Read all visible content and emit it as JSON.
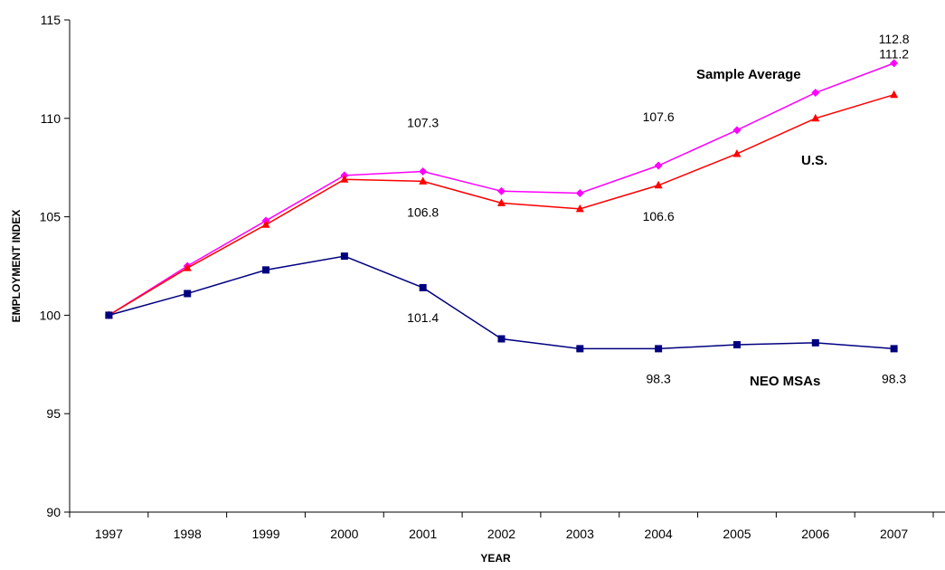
{
  "chart_data": {
    "type": "line",
    "xlabel": "YEAR",
    "ylabel": "EMPLOYMENT INDEX",
    "ylim": [
      90,
      115
    ],
    "yticks": [
      90,
      95,
      100,
      105,
      110,
      115
    ],
    "categories": [
      "1997",
      "1998",
      "1999",
      "2000",
      "2001",
      "2002",
      "2003",
      "2004",
      "2005",
      "2006",
      "2007"
    ],
    "grid": false,
    "legend": "none (series labeled inline)",
    "series": [
      {
        "name": "Sample Average",
        "color": "#FF00FF",
        "marker": "diamond",
        "values": [
          100.0,
          102.5,
          104.8,
          107.1,
          107.3,
          106.3,
          106.2,
          107.6,
          109.4,
          111.3,
          112.8
        ]
      },
      {
        "name": "U.S.",
        "color": "#FF0000",
        "marker": "triangle",
        "values": [
          100.0,
          102.4,
          104.6,
          106.9,
          106.8,
          105.7,
          105.4,
          106.6,
          108.2,
          110.0,
          111.2
        ]
      },
      {
        "name": "NEO MSAs",
        "color": "#000080",
        "marker": "square",
        "values": [
          100.0,
          101.1,
          102.3,
          103.0,
          101.4,
          98.8,
          98.3,
          98.3,
          98.5,
          98.6,
          98.3
        ]
      }
    ],
    "data_labels": [
      {
        "series": "Sample Average",
        "category": "2001",
        "text": "107.3"
      },
      {
        "series": "Sample Average",
        "category": "2004",
        "text": "107.6"
      },
      {
        "series": "Sample Average",
        "category": "2007",
        "text": "112.8"
      },
      {
        "series": "U.S.",
        "category": "2001",
        "text": "106.8"
      },
      {
        "series": "U.S.",
        "category": "2004",
        "text": "106.6"
      },
      {
        "series": "U.S.",
        "category": "2007",
        "text": "111.2"
      },
      {
        "series": "NEO MSAs",
        "category": "2001",
        "text": "101.4"
      },
      {
        "series": "NEO MSAs",
        "category": "2004",
        "text": "98.3"
      },
      {
        "series": "NEO MSAs",
        "category": "2007",
        "text": "98.3"
      }
    ]
  }
}
